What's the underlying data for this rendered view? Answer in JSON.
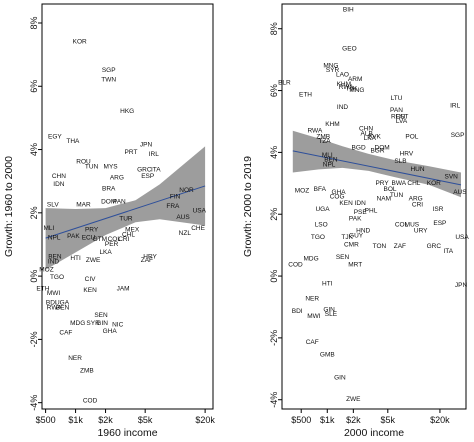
{
  "chart_data": [
    {
      "type": "scatter",
      "xlabel": "1960 income",
      "ylabel": "Growth: 1960 to 2000",
      "x_scale": "log",
      "xlim": [
        460,
        24000
      ],
      "ylim": [
        -4.2,
        8.6
      ],
      "x_ticks": [
        500,
        1000,
        2000,
        5000,
        20000
      ],
      "x_tick_labels": [
        "$500",
        "$1k",
        "$2k",
        "$5k",
        "$20k"
      ],
      "y_ticks": [
        -4,
        -2,
        0,
        2,
        4,
        6,
        8
      ],
      "y_tick_labels": [
        "-4%",
        "-2%",
        "0%",
        "2%",
        "4%",
        "6%",
        "8%"
      ],
      "grid": false,
      "colors": {
        "fit_line": "#2e4f9a",
        "confidence_band": "#8c8c8c",
        "frame": "#000000",
        "labels": "#111111"
      },
      "fit": {
        "x": [
          500,
          20000
        ],
        "y": [
          1.2,
          2.85
        ]
      },
      "band": {
        "x": [
          500,
          1000,
          2000,
          4000,
          7000,
          20000
        ],
        "upper": [
          2.15,
          2.12,
          2.15,
          2.4,
          2.9,
          4.1
        ],
        "lower": [
          0.2,
          0.75,
          1.3,
          1.7,
          1.8,
          1.6
        ]
      },
      "points": [
        {
          "label": "KOR",
          "x": 1100,
          "y": 7.4
        },
        {
          "label": "SGP",
          "x": 2150,
          "y": 6.5
        },
        {
          "label": "TWN",
          "x": 2150,
          "y": 6.2
        },
        {
          "label": "HKG",
          "x": 3300,
          "y": 5.2
        },
        {
          "label": "EGY",
          "x": 620,
          "y": 4.4
        },
        {
          "label": "THA",
          "x": 940,
          "y": 4.25
        },
        {
          "label": "JPN",
          "x": 5100,
          "y": 4.15
        },
        {
          "label": "PRT",
          "x": 3600,
          "y": 3.9
        },
        {
          "label": "IRL",
          "x": 6100,
          "y": 3.85
        },
        {
          "label": "ROU",
          "x": 1200,
          "y": 3.6
        },
        {
          "label": "TUN",
          "x": 1450,
          "y": 3.45
        },
        {
          "label": "MYS",
          "x": 2250,
          "y": 3.45
        },
        {
          "label": "GRC",
          "x": 4900,
          "y": 3.35
        },
        {
          "label": "ITA",
          "x": 6400,
          "y": 3.35
        },
        {
          "label": "ESP",
          "x": 5300,
          "y": 3.15
        },
        {
          "label": "CHN",
          "x": 680,
          "y": 3.15
        },
        {
          "label": "ARG",
          "x": 2600,
          "y": 3.1
        },
        {
          "label": "IDN",
          "x": 680,
          "y": 2.9
        },
        {
          "label": "BRA",
          "x": 2150,
          "y": 2.75
        },
        {
          "label": "SLV",
          "x": 590,
          "y": 2.25
        },
        {
          "label": "MAR",
          "x": 1200,
          "y": 2.25
        },
        {
          "label": "DOM",
          "x": 2150,
          "y": 2.35
        },
        {
          "label": "PAN",
          "x": 2750,
          "y": 2.35
        },
        {
          "label": "TUR",
          "x": 3200,
          "y": 1.8
        },
        {
          "label": "MLI",
          "x": 540,
          "y": 1.5
        },
        {
          "label": "NPL",
          "x": 610,
          "y": 1.2
        },
        {
          "label": "PAK",
          "x": 950,
          "y": 1.25
        },
        {
          "label": "PRY",
          "x": 1450,
          "y": 1.45
        },
        {
          "label": "ECU",
          "x": 1350,
          "y": 1.2
        },
        {
          "label": "GTM",
          "x": 1750,
          "y": 1.15
        },
        {
          "label": "COL",
          "x": 2450,
          "y": 1.15
        },
        {
          "label": "CRI",
          "x": 3050,
          "y": 1.15
        },
        {
          "label": "MEX",
          "x": 3700,
          "y": 1.45
        },
        {
          "label": "PER",
          "x": 2300,
          "y": 1.0
        },
        {
          "label": "CHL",
          "x": 3400,
          "y": 1.3
        },
        {
          "label": "NZL",
          "x": 12500,
          "y": 1.35
        },
        {
          "label": "CHE",
          "x": 17000,
          "y": 1.5
        },
        {
          "label": "AUS",
          "x": 12000,
          "y": 1.85
        },
        {
          "label": "USA",
          "x": 17500,
          "y": 2.05
        },
        {
          "label": "NOR",
          "x": 13000,
          "y": 2.7
        },
        {
          "label": "FIN",
          "x": 10000,
          "y": 2.5
        },
        {
          "label": "FRA",
          "x": 9500,
          "y": 2.2
        },
        {
          "label": "BEN",
          "x": 620,
          "y": 0.6
        },
        {
          "label": "IND",
          "x": 600,
          "y": 0.45
        },
        {
          "label": "MOZ",
          "x": 510,
          "y": 0.2
        },
        {
          "label": "TGO",
          "x": 650,
          "y": -0.05
        },
        {
          "label": "HTI",
          "x": 1000,
          "y": 0.55
        },
        {
          "label": "ETH",
          "x": 470,
          "y": -0.4
        },
        {
          "label": "ZWE",
          "x": 1500,
          "y": 0.5
        },
        {
          "label": "LKA",
          "x": 2000,
          "y": 0.75
        },
        {
          "label": "ZAF",
          "x": 5200,
          "y": 0.5
        },
        {
          "label": "HRY",
          "x": 5600,
          "y": 0.6
        },
        {
          "label": "MWI",
          "x": 600,
          "y": -0.55
        },
        {
          "label": "BDI",
          "x": 570,
          "y": -0.85
        },
        {
          "label": "RWA",
          "x": 610,
          "y": -1.0
        },
        {
          "label": "UGA",
          "x": 730,
          "y": -0.85
        },
        {
          "label": "BEN",
          "x": 740,
          "y": -1.0
        },
        {
          "label": "CIV",
          "x": 1400,
          "y": -0.1
        },
        {
          "label": "KEN",
          "x": 1400,
          "y": -0.45
        },
        {
          "label": "JAM",
          "x": 3000,
          "y": -0.4
        },
        {
          "label": "SEN",
          "x": 1800,
          "y": -1.25
        },
        {
          "label": "GIN",
          "x": 1850,
          "y": -1.5
        },
        {
          "label": "SYR",
          "x": 1500,
          "y": -1.5
        },
        {
          "label": "NIC",
          "x": 2650,
          "y": -1.55
        },
        {
          "label": "GHA",
          "x": 2200,
          "y": -1.75
        },
        {
          "label": "MDG",
          "x": 1050,
          "y": -1.5
        },
        {
          "label": "CAF",
          "x": 800,
          "y": -1.8
        },
        {
          "label": "NER",
          "x": 990,
          "y": -2.6
        },
        {
          "label": "ZMB",
          "x": 1300,
          "y": -3.0
        },
        {
          "label": "COD",
          "x": 1400,
          "y": -3.95
        }
      ]
    },
    {
      "type": "scatter",
      "xlabel": "2000 income",
      "ylabel": "Growth: 2000 to 2019",
      "x_scale": "log",
      "xlim": [
        300,
        40000
      ],
      "ylim": [
        -4.3,
        8.8
      ],
      "x_ticks": [
        500,
        1000,
        2000,
        5000,
        20000
      ],
      "x_tick_labels": [
        "$500",
        "$1k",
        "$2k",
        "$5k",
        "$20k"
      ],
      "y_ticks": [
        -4,
        -2,
        0,
        2,
        4,
        6,
        8
      ],
      "y_tick_labels": [
        "-4%",
        "-2%",
        "0%",
        "2%",
        "4%",
        "6%",
        "8%"
      ],
      "grid": false,
      "colors": {
        "fit_line": "#2e4f9a",
        "confidence_band": "#8c8c8c",
        "frame": "#000000",
        "labels": "#111111"
      },
      "fit": {
        "x": [
          400,
          35000
        ],
        "y": [
          4.05,
          2.95
        ]
      },
      "band": {
        "x": [
          400,
          800,
          1500,
          3000,
          6000,
          15000,
          35000
        ],
        "upper": [
          4.7,
          4.45,
          4.2,
          3.95,
          3.75,
          3.55,
          3.35
        ],
        "lower": [
          3.35,
          3.45,
          3.5,
          3.4,
          3.2,
          2.95,
          2.55
        ]
      },
      "points": [
        {
          "label": "BIH",
          "x": 1750,
          "y": 8.6
        },
        {
          "label": "GEO",
          "x": 1800,
          "y": 7.35
        },
        {
          "label": "MNG",
          "x": 1100,
          "y": 6.8
        },
        {
          "label": "SYR",
          "x": 1150,
          "y": 6.65
        },
        {
          "label": "LAO",
          "x": 1500,
          "y": 6.5
        },
        {
          "label": "ARM",
          "x": 2100,
          "y": 6.35
        },
        {
          "label": "BLR",
          "x": 320,
          "y": 6.25
        },
        {
          "label": "KHM",
          "x": 1550,
          "y": 6.2
        },
        {
          "label": "RWA",
          "x": 1650,
          "y": 6.1
        },
        {
          "label": "TJK",
          "x": 1900,
          "y": 6.05
        },
        {
          "label": "MNG",
          "x": 2200,
          "y": 6.0
        },
        {
          "label": "ETH",
          "x": 560,
          "y": 5.85
        },
        {
          "label": "IND",
          "x": 1500,
          "y": 5.45
        },
        {
          "label": "LTU",
          "x": 6300,
          "y": 5.75
        },
        {
          "label": "IRL",
          "x": 30000,
          "y": 5.5
        },
        {
          "label": "PAN",
          "x": 6300,
          "y": 5.35
        },
        {
          "label": "ROU",
          "x": 6600,
          "y": 5.15
        },
        {
          "label": "EST",
          "x": 7300,
          "y": 5.15
        },
        {
          "label": "LVA",
          "x": 7200,
          "y": 5.0
        },
        {
          "label": "RWA",
          "x": 720,
          "y": 4.7
        },
        {
          "label": "ZMB",
          "x": 900,
          "y": 4.5
        },
        {
          "label": "KHM",
          "x": 1150,
          "y": 4.9
        },
        {
          "label": "TZA",
          "x": 930,
          "y": 4.35
        },
        {
          "label": "CHN",
          "x": 2800,
          "y": 4.75
        },
        {
          "label": "ALB",
          "x": 2850,
          "y": 4.6
        },
        {
          "label": "LKA",
          "x": 3100,
          "y": 4.45
        },
        {
          "label": "SVK",
          "x": 3500,
          "y": 4.5
        },
        {
          "label": "BGD",
          "x": 2300,
          "y": 4.15
        },
        {
          "label": "POL",
          "x": 9500,
          "y": 4.5
        },
        {
          "label": "SGP",
          "x": 32000,
          "y": 4.55
        },
        {
          "label": "DOM",
          "x": 4300,
          "y": 4.15
        },
        {
          "label": "BGR",
          "x": 3800,
          "y": 4.05
        },
        {
          "label": "HRV",
          "x": 8200,
          "y": 3.95
        },
        {
          "label": "SLB",
          "x": 7000,
          "y": 3.7
        },
        {
          "label": "HUN",
          "x": 11000,
          "y": 3.45
        },
        {
          "label": "NPL",
          "x": 1050,
          "y": 3.6
        },
        {
          "label": "MLI",
          "x": 1000,
          "y": 3.9
        },
        {
          "label": "BEN",
          "x": 1100,
          "y": 3.75
        },
        {
          "label": "PRY",
          "x": 4300,
          "y": 3.0
        },
        {
          "label": "BWA",
          "x": 6700,
          "y": 3.0
        },
        {
          "label": "BOL",
          "x": 5300,
          "y": 2.8
        },
        {
          "label": "CHL",
          "x": 10000,
          "y": 3.0
        },
        {
          "label": "KOR",
          "x": 17000,
          "y": 3.0
        },
        {
          "label": "TUN",
          "x": 6300,
          "y": 2.6
        },
        {
          "label": "SVN",
          "x": 27000,
          "y": 3.2
        },
        {
          "label": "AUS",
          "x": 34000,
          "y": 2.7
        },
        {
          "label": "MOZ",
          "x": 510,
          "y": 2.75
        },
        {
          "label": "BFA",
          "x": 820,
          "y": 2.8
        },
        {
          "label": "GHA",
          "x": 1350,
          "y": 2.7
        },
        {
          "label": "COG",
          "x": 1300,
          "y": 2.55
        },
        {
          "label": "NAM",
          "x": 4500,
          "y": 2.5
        },
        {
          "label": "KEN",
          "x": 1650,
          "y": 2.35
        },
        {
          "label": "IDN",
          "x": 2400,
          "y": 2.35
        },
        {
          "label": "UGA",
          "x": 880,
          "y": 2.15
        },
        {
          "label": "PHL",
          "x": 3200,
          "y": 2.1
        },
        {
          "label": "PSE",
          "x": 2400,
          "y": 2.05
        },
        {
          "label": "ARG",
          "x": 10500,
          "y": 2.5
        },
        {
          "label": "CRI",
          "x": 11000,
          "y": 2.3
        },
        {
          "label": "ISR",
          "x": 19000,
          "y": 2.15
        },
        {
          "label": "PAK",
          "x": 2100,
          "y": 1.85
        },
        {
          "label": "LSO",
          "x": 850,
          "y": 1.65
        },
        {
          "label": "HND",
          "x": 2600,
          "y": 1.45
        },
        {
          "label": "TGO",
          "x": 780,
          "y": 1.25
        },
        {
          "label": "CMR",
          "x": 1900,
          "y": 1.0
        },
        {
          "label": "TJK",
          "x": 1700,
          "y": 1.25
        },
        {
          "label": "GUY",
          "x": 2150,
          "y": 1.3
        },
        {
          "label": "COL",
          "x": 7200,
          "y": 1.65
        },
        {
          "label": "MUS",
          "x": 9500,
          "y": 1.65
        },
        {
          "label": "ESP",
          "x": 20000,
          "y": 1.7
        },
        {
          "label": "URY",
          "x": 12000,
          "y": 1.45
        },
        {
          "label": "TON",
          "x": 4000,
          "y": 0.95
        },
        {
          "label": "ZAF",
          "x": 6900,
          "y": 0.95
        },
        {
          "label": "GRC",
          "x": 17000,
          "y": 0.95
        },
        {
          "label": "ITA",
          "x": 25000,
          "y": 0.8
        },
        {
          "label": "USA",
          "x": 36000,
          "y": 1.25
        },
        {
          "label": "MDG",
          "x": 650,
          "y": 0.55
        },
        {
          "label": "SEN",
          "x": 1500,
          "y": 0.6
        },
        {
          "label": "MRT",
          "x": 2100,
          "y": 0.35
        },
        {
          "label": "COD",
          "x": 430,
          "y": 0.35
        },
        {
          "label": "HTI",
          "x": 1000,
          "y": -0.25
        },
        {
          "label": "NER",
          "x": 670,
          "y": -0.75
        },
        {
          "label": "BDI",
          "x": 450,
          "y": -1.15
        },
        {
          "label": "MWI",
          "x": 700,
          "y": -1.3
        },
        {
          "label": "GIN",
          "x": 1050,
          "y": -1.1
        },
        {
          "label": "SLE",
          "x": 1100,
          "y": -1.25
        },
        {
          "label": "JPN",
          "x": 35000,
          "y": -0.3
        },
        {
          "label": "CAF",
          "x": 670,
          "y": -2.15
        },
        {
          "label": "GMB",
          "x": 1000,
          "y": -2.55
        },
        {
          "label": "GIN",
          "x": 1400,
          "y": -3.3
        },
        {
          "label": "ZWE",
          "x": 2000,
          "y": -4.0
        }
      ]
    }
  ]
}
